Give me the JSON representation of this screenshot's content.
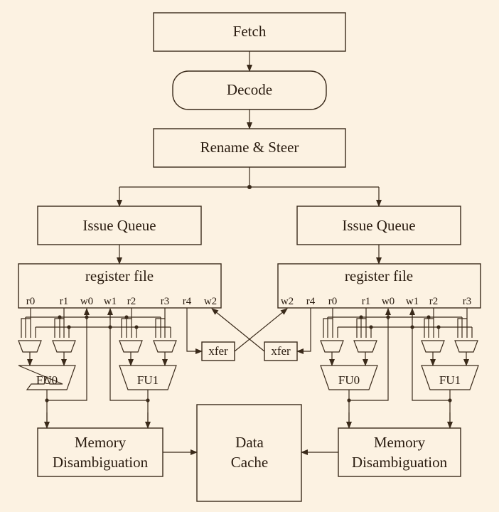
{
  "stages": {
    "fetch": "Fetch",
    "decode": "Decode",
    "rename": "Rename & Steer"
  },
  "left": {
    "issue_queue": "Issue Queue",
    "register_file": "register file",
    "ports": [
      "r0",
      "r1",
      "w0",
      "w1",
      "r2",
      "r3",
      "r4",
      "w2"
    ],
    "xfer": "xfer",
    "fu0": "FU0",
    "fu1": "FU1",
    "mem_line1": "Memory",
    "mem_line2": "Disambiguation"
  },
  "right": {
    "issue_queue": "Issue Queue",
    "register_file": "register file",
    "ports": [
      "w2",
      "r4",
      "r0",
      "r1",
      "w0",
      "w1",
      "r2",
      "r3"
    ],
    "xfer": "xfer",
    "fu0": "FU0",
    "fu1": "FU1",
    "mem_line1": "Memory",
    "mem_line2": "Disambiguation"
  },
  "cache": {
    "line1": "Data",
    "line2": "Cache"
  }
}
